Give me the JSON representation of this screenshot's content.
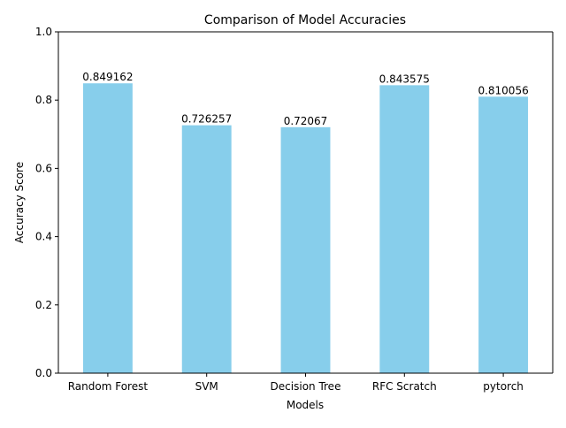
{
  "chart_data": {
    "type": "bar",
    "title": "Comparison of Model Accuracies",
    "xlabel": "Models",
    "ylabel": "Accuracy Score",
    "categories": [
      "Random Forest",
      "SVM",
      "Decision Tree",
      "RFC Scratch",
      "pytorch"
    ],
    "values": [
      0.849162,
      0.726257,
      0.72067,
      0.843575,
      0.810056
    ],
    "data_labels": [
      "0.849162",
      "0.726257",
      "0.72067",
      "0.843575",
      "0.810056"
    ],
    "ylim": [
      0,
      1.0
    ],
    "yticks": [
      0.0,
      0.2,
      0.4,
      0.6,
      0.8,
      1.0
    ],
    "ytick_labels": [
      "0.0",
      "0.2",
      "0.4",
      "0.6",
      "0.8",
      "1.0"
    ],
    "grid": false,
    "bar_color": "#87CEEB"
  }
}
